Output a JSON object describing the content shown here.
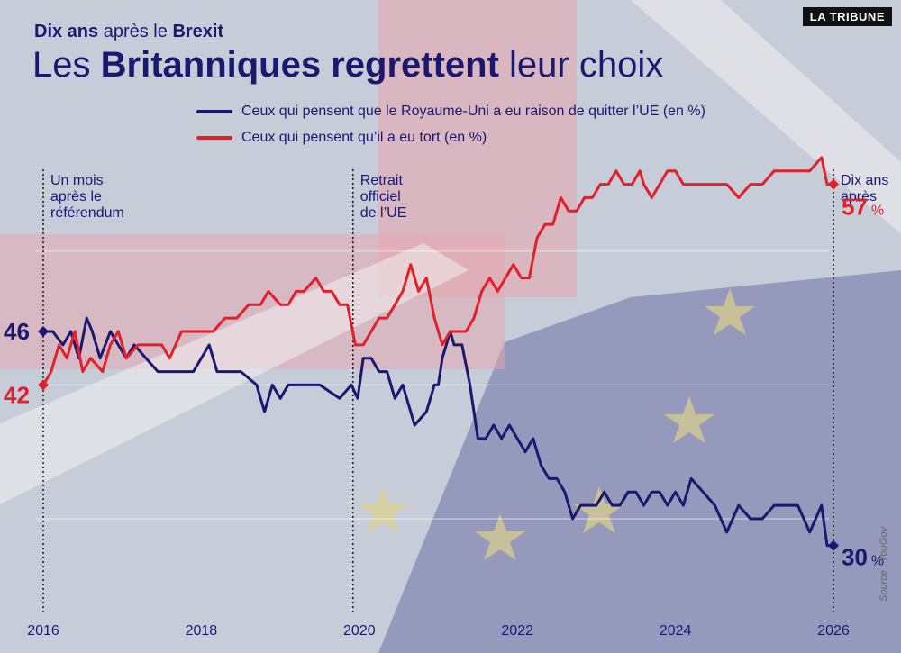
{
  "header": {
    "kicker_a": "Dix ans",
    "kicker_b": "après le",
    "kicker_c": "Brexit",
    "title_a": "Les",
    "title_b": "Britanniques regrettent",
    "title_c": "leur choix",
    "brand": "LA TRIBUNE",
    "source": "Source : YouGov"
  },
  "colors": {
    "blue": "#1c1870",
    "red": "#e0202a",
    "navy_text": "#1c1870"
  },
  "chart_data": {
    "type": "line",
    "xlim": [
      2016,
      2026
    ],
    "ylim": [
      25,
      60
    ],
    "xticks": [
      "2016",
      "2018",
      "2020",
      "2022",
      "2024",
      "2026"
    ],
    "gridlines_y": [
      32,
      42,
      52
    ],
    "series": [
      {
        "name": "Ceux qui pensent que le Royaume-Uni a eu raison de quitter l’UE (en %)",
        "color": "#1c1870",
        "x": [
          2016.0,
          2016.12,
          2016.25,
          2016.35,
          2016.45,
          2016.55,
          2016.62,
          2016.72,
          2016.85,
          2016.95,
          2017.05,
          2017.15,
          2017.3,
          2017.45,
          2017.6,
          2017.75,
          2017.9,
          2018.1,
          2018.2,
          2018.35,
          2018.5,
          2018.7,
          2018.8,
          2018.9,
          2019.0,
          2019.1,
          2019.2,
          2019.3,
          2019.5,
          2019.75,
          2019.9,
          2019.98,
          2020.05,
          2020.15,
          2020.25,
          2020.35,
          2020.45,
          2020.55,
          2020.7,
          2020.85,
          2020.95,
          2021.0,
          2021.05,
          2021.1,
          2021.15,
          2021.2,
          2021.3,
          2021.4,
          2021.5,
          2021.6,
          2021.7,
          2021.8,
          2021.9,
          2022.0,
          2022.1,
          2022.2,
          2022.3,
          2022.4,
          2022.5,
          2022.6,
          2022.7,
          2022.8,
          2022.9,
          2023.0,
          2023.1,
          2023.2,
          2023.3,
          2023.4,
          2023.5,
          2023.6,
          2023.7,
          2023.8,
          2023.9,
          2024.0,
          2024.1,
          2024.2,
          2024.35,
          2024.5,
          2024.65,
          2024.8,
          2024.95,
          2025.1,
          2025.25,
          2025.4,
          2025.55,
          2025.7,
          2025.85,
          2025.92,
          2026.0
        ],
        "values": [
          46,
          46,
          45,
          46,
          44,
          47,
          46,
          44,
          46,
          45,
          44,
          45,
          44,
          43,
          43,
          43,
          43,
          45,
          43,
          43,
          43,
          42,
          40,
          42,
          41,
          42,
          42,
          42,
          42,
          41,
          42,
          41,
          44,
          44,
          43,
          43,
          41,
          42,
          39,
          40,
          42,
          42,
          44,
          45,
          46,
          45,
          45,
          42,
          38,
          38,
          39,
          38,
          39,
          38,
          37,
          38,
          36,
          35,
          35,
          34,
          32,
          33,
          33,
          33,
          34,
          33,
          33,
          34,
          34,
          33,
          34,
          34,
          33,
          34,
          33,
          35,
          34,
          33,
          31,
          33,
          32,
          32,
          33,
          33,
          33,
          31,
          33,
          30,
          30
        ]
      },
      {
        "name": "Ceux qui pensent qu’il a eu tort (en %)",
        "color": "#e0202a",
        "x": [
          2016.0,
          2016.1,
          2016.2,
          2016.3,
          2016.4,
          2016.5,
          2016.6,
          2016.75,
          2016.85,
          2016.95,
          2017.05,
          2017.2,
          2017.35,
          2017.5,
          2017.6,
          2017.75,
          2017.9,
          2018.05,
          2018.15,
          2018.3,
          2018.45,
          2018.6,
          2018.75,
          2018.85,
          2019.0,
          2019.1,
          2019.2,
          2019.3,
          2019.45,
          2019.55,
          2019.65,
          2019.75,
          2019.85,
          2019.95,
          2020.05,
          2020.15,
          2020.25,
          2020.35,
          2020.45,
          2020.55,
          2020.65,
          2020.75,
          2020.85,
          2020.95,
          2021.05,
          2021.15,
          2021.25,
          2021.35,
          2021.45,
          2021.55,
          2021.65,
          2021.75,
          2021.85,
          2021.95,
          2022.05,
          2022.15,
          2022.25,
          2022.35,
          2022.45,
          2022.55,
          2022.65,
          2022.75,
          2022.85,
          2022.95,
          2023.05,
          2023.15,
          2023.25,
          2023.35,
          2023.45,
          2023.55,
          2023.6,
          2023.7,
          2023.8,
          2023.9,
          2024.0,
          2024.1,
          2024.2,
          2024.35,
          2024.5,
          2024.65,
          2024.8,
          2024.95,
          2025.1,
          2025.25,
          2025.4,
          2025.55,
          2025.7,
          2025.85,
          2025.92,
          2026.0
        ],
        "values": [
          42,
          43,
          45,
          44,
          46,
          43,
          44,
          43,
          45,
          46,
          44,
          45,
          45,
          45,
          44,
          46,
          46,
          46,
          46,
          47,
          47,
          48,
          48,
          49,
          48,
          48,
          49,
          49,
          50,
          49,
          49,
          48,
          48,
          45,
          45,
          46,
          47,
          47,
          48,
          49,
          51,
          49,
          50,
          47,
          45,
          46,
          46,
          46,
          47,
          49,
          50,
          49,
          50,
          51,
          50,
          50,
          53,
          54,
          54,
          56,
          55,
          55,
          56,
          56,
          57,
          57,
          58,
          57,
          57,
          58,
          57,
          56,
          57,
          58,
          58,
          57,
          57,
          57,
          57,
          57,
          56,
          57,
          57,
          58,
          58,
          58,
          58,
          59,
          57,
          57
        ]
      }
    ],
    "annotations": [
      {
        "x": 2016.0,
        "text": [
          "Un mois",
          "après le",
          "référendum"
        ]
      },
      {
        "x": 2019.92,
        "text": [
          "Retrait",
          "officiel",
          "de l’UE"
        ]
      },
      {
        "x": 2026.0,
        "text": [
          "Dix ans",
          "après"
        ]
      }
    ],
    "endpoint_labels": {
      "blue_start": "46",
      "red_start": "42",
      "blue_end": "30",
      "red_end": "57",
      "unit": "%"
    },
    "title": "Les Britanniques regrettent leur choix",
    "xlabel": "",
    "ylabel": "",
    "legend": "top"
  }
}
